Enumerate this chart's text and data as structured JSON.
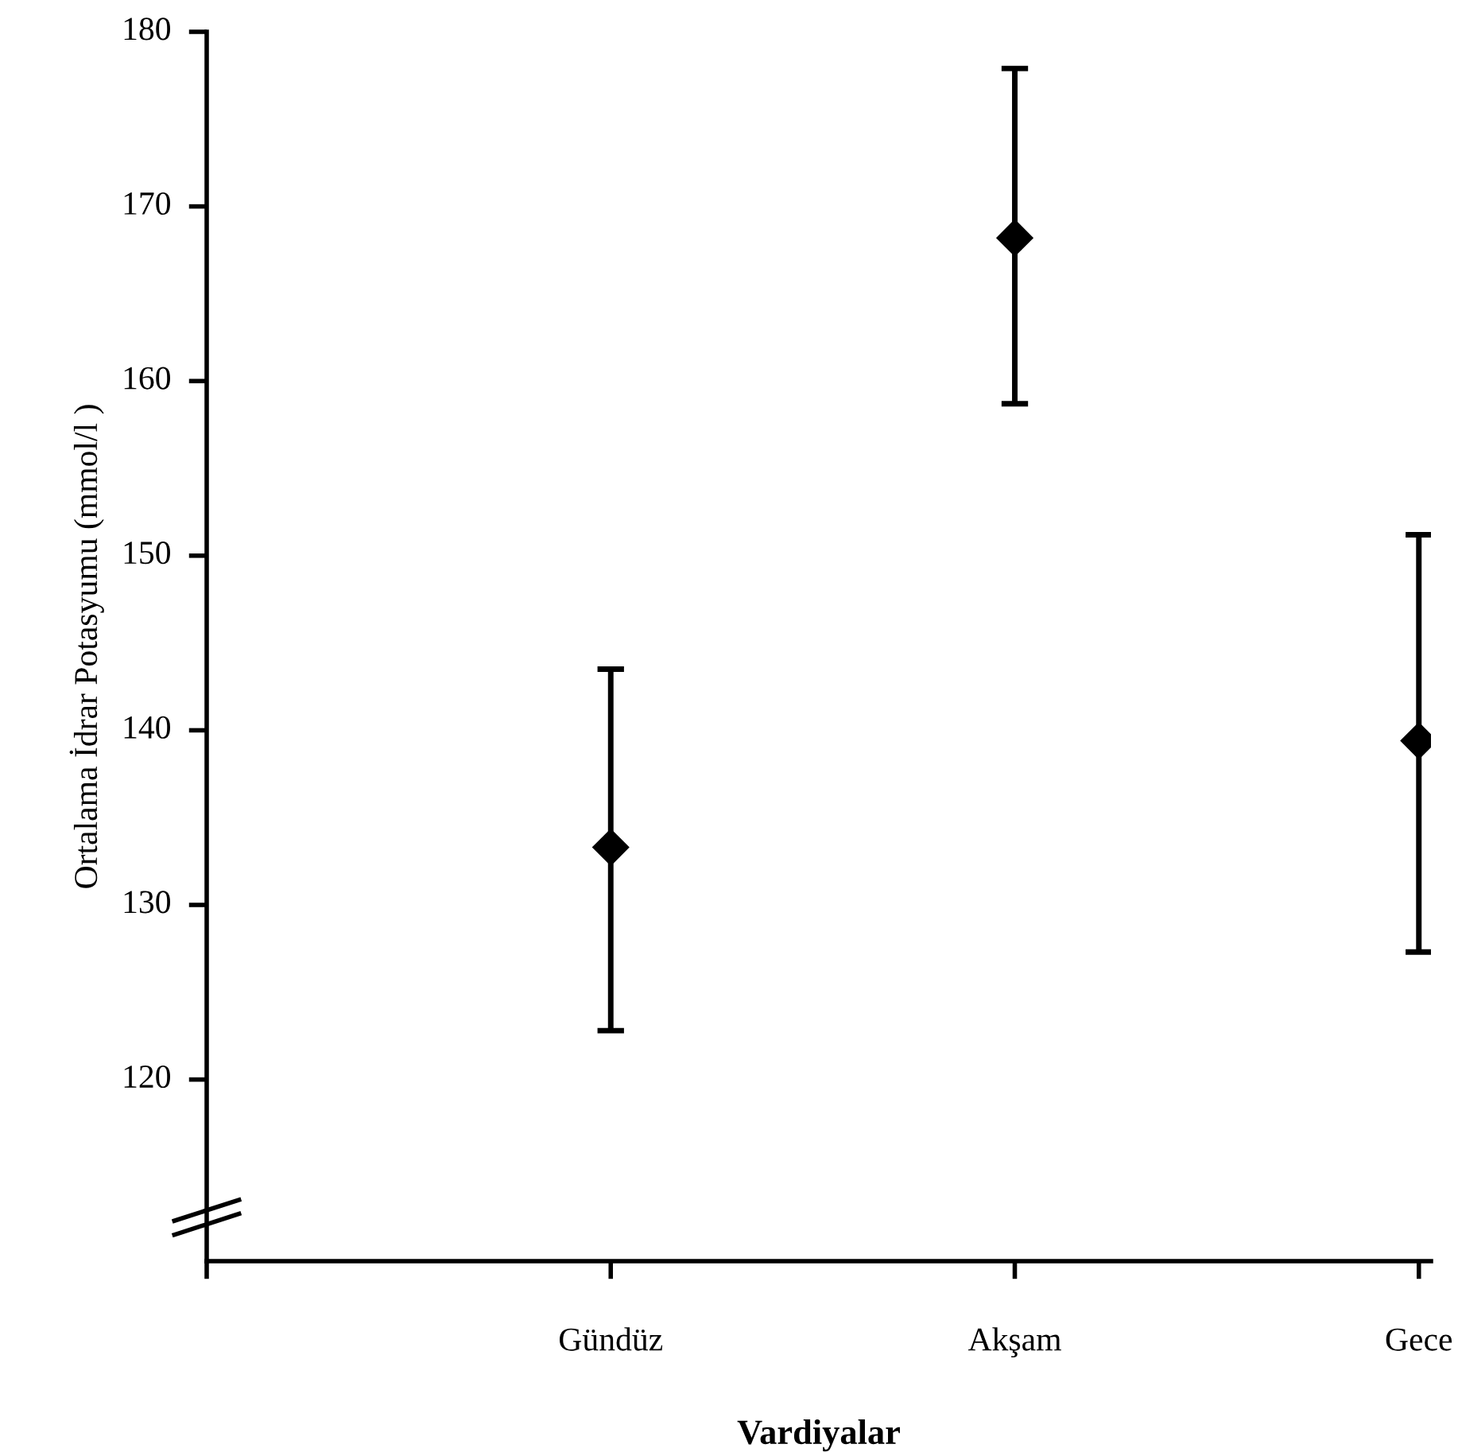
{
  "chart_data": {
    "type": "scatter",
    "xlabel": "Vardiyalar",
    "ylabel": "Ortalama İdrar Potasyumu (mmol/l )",
    "categories": [
      null,
      "Gündüz",
      "Akşam",
      "Gece"
    ],
    "values": [
      null,
      133.3,
      168.2,
      139.4
    ],
    "errors": [
      null,
      [
        122.8,
        143.5
      ],
      [
        158.7,
        177.9
      ],
      [
        127.3,
        151.2
      ]
    ],
    "color": "#000000",
    "marker": "diamond",
    "ylim": [
      109.6,
      180
    ],
    "yticks": [
      120,
      130,
      140,
      150,
      160,
      170,
      180
    ],
    "grid": false
  }
}
